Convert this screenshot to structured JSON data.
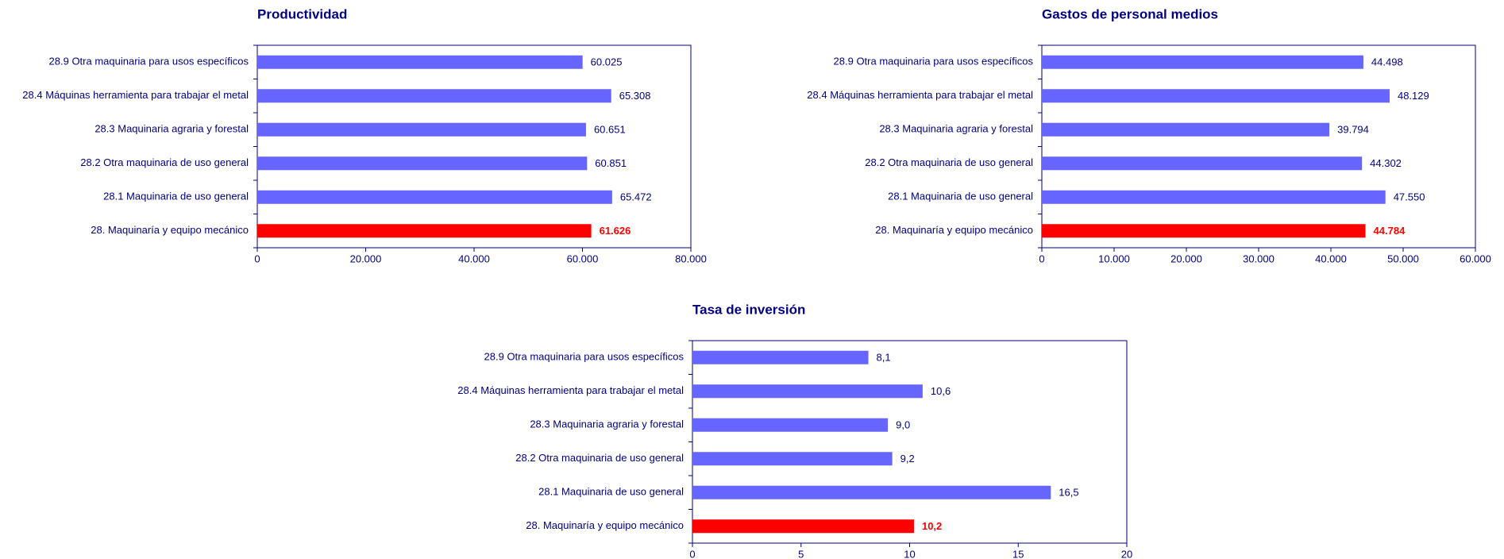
{
  "chart_data": [
    {
      "type": "bar",
      "title": "Productividad",
      "categories": [
        "28.9 Otra maquinaria para usos específicos",
        "28.4 Máquinas herramienta para trabajar el metal",
        "28.3 Maquinaria agraria y forestal",
        "28.2 Otra maquinaria de uso general",
        "28.1 Maquinaria de uso general",
        "28. Maquinaría y equipo mecánico"
      ],
      "values": [
        60025,
        65308,
        60651,
        60851,
        65472,
        61626
      ],
      "value_labels": [
        "60.025",
        "65.308",
        "60.651",
        "60.851",
        "65.472",
        "61.626"
      ],
      "colors": [
        "#6666ff",
        "#6666ff",
        "#6666ff",
        "#6666ff",
        "#6666ff",
        "#ff0000"
      ],
      "xlim": [
        0,
        80000
      ],
      "xticks": [
        0,
        {
          "value": 20000,
          "label": "20.000"
        },
        {
          "value": 40000,
          "label": "40.000"
        },
        {
          "value": 60000,
          "label": "60.000"
        },
        {
          "value": 80000,
          "label": "80.000"
        }
      ]
    },
    {
      "type": "bar",
      "title": "Gastos de personal medios",
      "categories": [
        "28.9 Otra maquinaria para usos específicos",
        "28.4 Máquinas herramienta para trabajar el metal",
        "28.3 Maquinaria agraria y forestal",
        "28.2 Otra maquinaria de uso general",
        "28.1 Maquinaria de uso general",
        "28. Maquinaría y equipo mecánico"
      ],
      "values": [
        44498,
        48129,
        39794,
        44302,
        47550,
        44784
      ],
      "value_labels": [
        "44.498",
        "48.129",
        "39.794",
        "44.302",
        "47.550",
        "44.784"
      ],
      "colors": [
        "#6666ff",
        "#6666ff",
        "#6666ff",
        "#6666ff",
        "#6666ff",
        "#ff0000"
      ],
      "xlim": [
        0,
        60000
      ],
      "xticks": [
        0,
        {
          "value": 10000,
          "label": "10.000"
        },
        {
          "value": 20000,
          "label": "20.000"
        },
        {
          "value": 30000,
          "label": "30.000"
        },
        {
          "value": 40000,
          "label": "40.000"
        },
        {
          "value": 50000,
          "label": "50.000"
        },
        {
          "value": 60000,
          "label": "60.000"
        }
      ]
    },
    {
      "type": "bar",
      "title": "Tasa de inversión",
      "categories": [
        "28.9 Otra maquinaria para usos específicos",
        "28.4 Máquinas herramienta para trabajar el metal",
        "28.3 Maquinaria agraria y forestal",
        "28.2 Otra maquinaria de uso general",
        "28.1 Maquinaria de uso general",
        "28. Maquinaría y equipo mecánico"
      ],
      "values": [
        8.1,
        10.6,
        9.0,
        9.2,
        16.5,
        10.2
      ],
      "value_labels": [
        "8,1",
        "10,6",
        "9,0",
        "9,2",
        "16,5",
        "10,2"
      ],
      "colors": [
        "#6666ff",
        "#6666ff",
        "#6666ff",
        "#6666ff",
        "#6666ff",
        "#ff0000"
      ],
      "xlim": [
        0,
        20
      ],
      "xticks": [
        0,
        5,
        10,
        15,
        20
      ]
    }
  ]
}
